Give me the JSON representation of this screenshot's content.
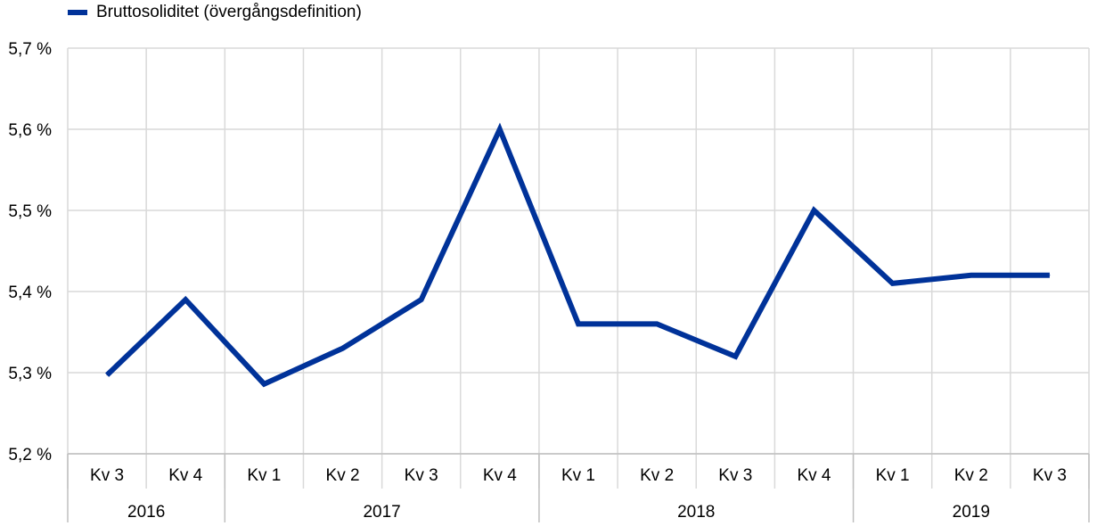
{
  "colors": {
    "series": "#003299",
    "grid": "#d9d9d9",
    "axis": "#bfbfbf"
  },
  "chart_data": {
    "type": "line",
    "title": "",
    "xlabel": "",
    "ylabel": "",
    "ylim": [
      5.2,
      5.7
    ],
    "yticks": [
      5.2,
      5.3,
      5.4,
      5.5,
      5.6,
      5.7
    ],
    "ytick_labels": [
      "5,2 %",
      "5,3 %",
      "5,4 %",
      "5,5 %",
      "5,6 %",
      "5,7 %"
    ],
    "grid": true,
    "legend_position": "top-left",
    "categories": [
      "Kv 3",
      "Kv 4",
      "Kv 1",
      "Kv 2",
      "Kv 3",
      "Kv 4",
      "Kv 1",
      "Kv 2",
      "Kv 3",
      "Kv 4",
      "Kv 1",
      "Kv 2",
      "Kv 3"
    ],
    "year_groups": [
      {
        "label": "2016",
        "count": 2
      },
      {
        "label": "2017",
        "count": 4
      },
      {
        "label": "2018",
        "count": 4
      },
      {
        "label": "2019",
        "count": 3
      }
    ],
    "series": [
      {
        "name": "Bruttosoliditet (övergångsdefinition)",
        "values": [
          5.297,
          5.39,
          5.286,
          5.33,
          5.39,
          5.6,
          5.36,
          5.36,
          5.32,
          5.5,
          5.41,
          5.42,
          5.42
        ]
      }
    ]
  }
}
